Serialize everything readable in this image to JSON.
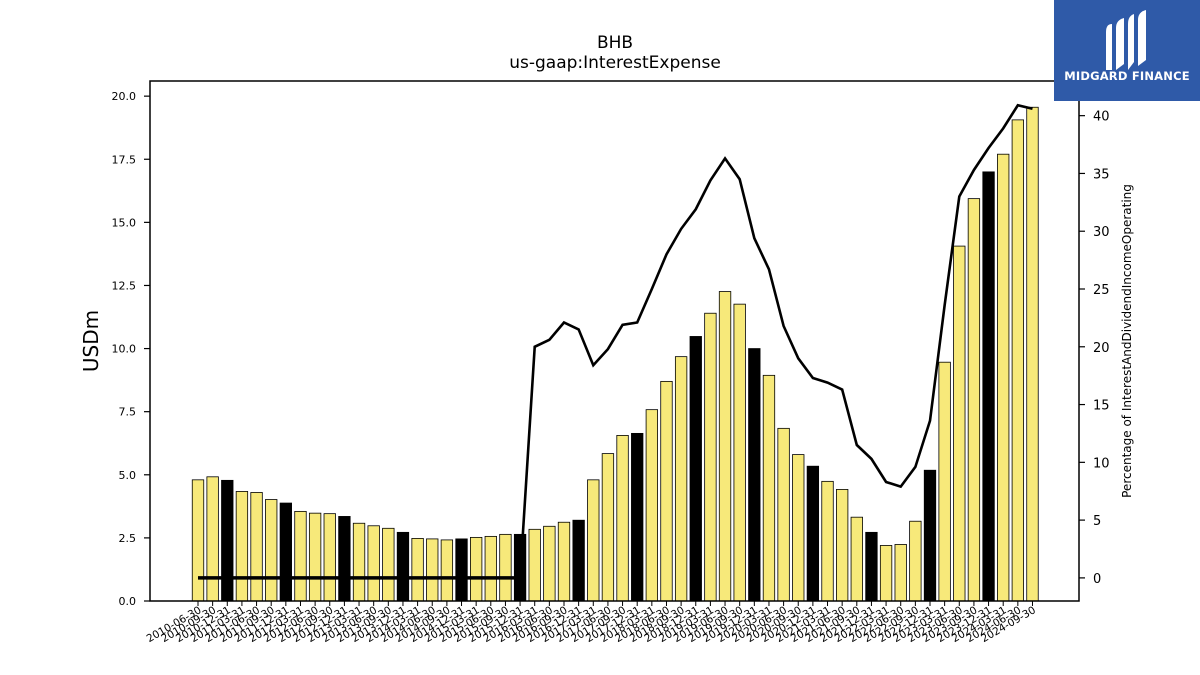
{
  "logo": {
    "text": "MIDGARD FINANCE",
    "icon": "midgard-logo-icon",
    "background": "#2f5aa8"
  },
  "chart_data": {
    "type": "bar",
    "title": "BHB",
    "subtitle": "us-gaap:InterestExpense",
    "ylabel": "USDm",
    "y2label": "Percentage of InterestAndDividendIncomeOperating",
    "ylim": [
      0,
      20.6
    ],
    "y2lim": [
      -2,
      43
    ],
    "yticks": [
      "0.0",
      "2.5",
      "5.0",
      "7.5",
      "10.0",
      "12.5",
      "15.0",
      "17.5",
      "20.0"
    ],
    "y2ticks": [
      "0",
      "5",
      "10",
      "15",
      "20",
      "25",
      "30",
      "35",
      "40"
    ],
    "bar_color": "#f7e97a",
    "q4_bar_color": "#000000",
    "line_color": "#000000",
    "grid": false,
    "categories": [
      "2010-06-30",
      "2010-09-30",
      "2010-12-31",
      "2011-03-31",
      "2011-06-30",
      "2011-09-30",
      "2011-12-31",
      "2012-03-31",
      "2012-06-30",
      "2012-09-30",
      "2012-12-31",
      "2013-03-31",
      "2013-06-30",
      "2013-09-30",
      "2013-12-31",
      "2014-03-31",
      "2014-06-30",
      "2014-09-30",
      "2014-12-31",
      "2015-03-31",
      "2015-06-30",
      "2015-09-30",
      "2015-12-31",
      "2016-03-31",
      "2016-06-30",
      "2016-09-30",
      "2016-12-31",
      "2017-03-31",
      "2017-06-30",
      "2017-09-30",
      "2017-12-31",
      "2018-03-31",
      "2018-06-30",
      "2018-09-30",
      "2018-12-31",
      "2019-03-31",
      "2019-06-30",
      "2019-09-30",
      "2019-12-31",
      "2020-03-31",
      "2020-06-30",
      "2020-09-30",
      "2020-12-31",
      "2021-03-31",
      "2021-06-30",
      "2021-09-30",
      "2021-12-31",
      "2022-03-31",
      "2022-06-30",
      "2022-09-30",
      "2022-12-31",
      "2023-03-31",
      "2023-06-30",
      "2023-09-30",
      "2023-12-31",
      "2024-03-31",
      "2024-06-30",
      "2024-09-30"
    ],
    "bar_values": [
      4.8,
      4.92,
      4.78,
      4.34,
      4.3,
      4.02,
      3.88,
      3.55,
      3.48,
      3.46,
      3.35,
      3.08,
      2.98,
      2.88,
      2.72,
      2.48,
      2.46,
      2.42,
      2.46,
      2.52,
      2.56,
      2.64,
      2.64,
      2.84,
      2.96,
      3.12,
      3.2,
      4.8,
      5.84,
      6.56,
      6.64,
      7.58,
      8.7,
      9.68,
      10.48,
      11.4,
      12.26,
      11.76,
      10.0,
      8.94,
      6.84,
      5.8,
      5.34,
      4.74,
      4.42,
      3.32,
      2.72,
      2.2,
      2.24,
      3.16,
      5.18,
      9.46,
      14.06,
      15.94,
      17.0,
      17.7,
      19.06,
      19.56
    ],
    "q4_flags": [
      false,
      false,
      true,
      false,
      false,
      false,
      true,
      false,
      false,
      false,
      true,
      false,
      false,
      false,
      true,
      false,
      false,
      false,
      true,
      false,
      false,
      false,
      true,
      false,
      false,
      false,
      true,
      false,
      false,
      false,
      true,
      false,
      false,
      false,
      true,
      false,
      false,
      false,
      true,
      false,
      false,
      false,
      true,
      false,
      false,
      false,
      true,
      false,
      false,
      false,
      true,
      false,
      false,
      false,
      true,
      false,
      false,
      false
    ],
    "line_values": [
      0,
      0,
      0,
      0,
      0,
      0,
      0,
      0,
      0,
      0,
      0,
      0,
      0,
      0,
      0,
      0,
      0,
      0,
      0,
      0,
      0,
      0,
      0,
      20.0,
      20.6,
      22.1,
      21.5,
      18.4,
      19.8,
      21.9,
      22.1,
      25.0,
      28.0,
      30.2,
      31.9,
      34.4,
      36.3,
      34.5,
      29.4,
      26.7,
      21.8,
      19.0,
      17.3,
      16.9,
      16.3,
      11.5,
      10.3,
      8.3,
      7.9,
      9.6,
      13.6,
      23.6,
      33.0,
      35.3,
      37.2,
      38.9,
      40.9,
      40.6
    ]
  }
}
